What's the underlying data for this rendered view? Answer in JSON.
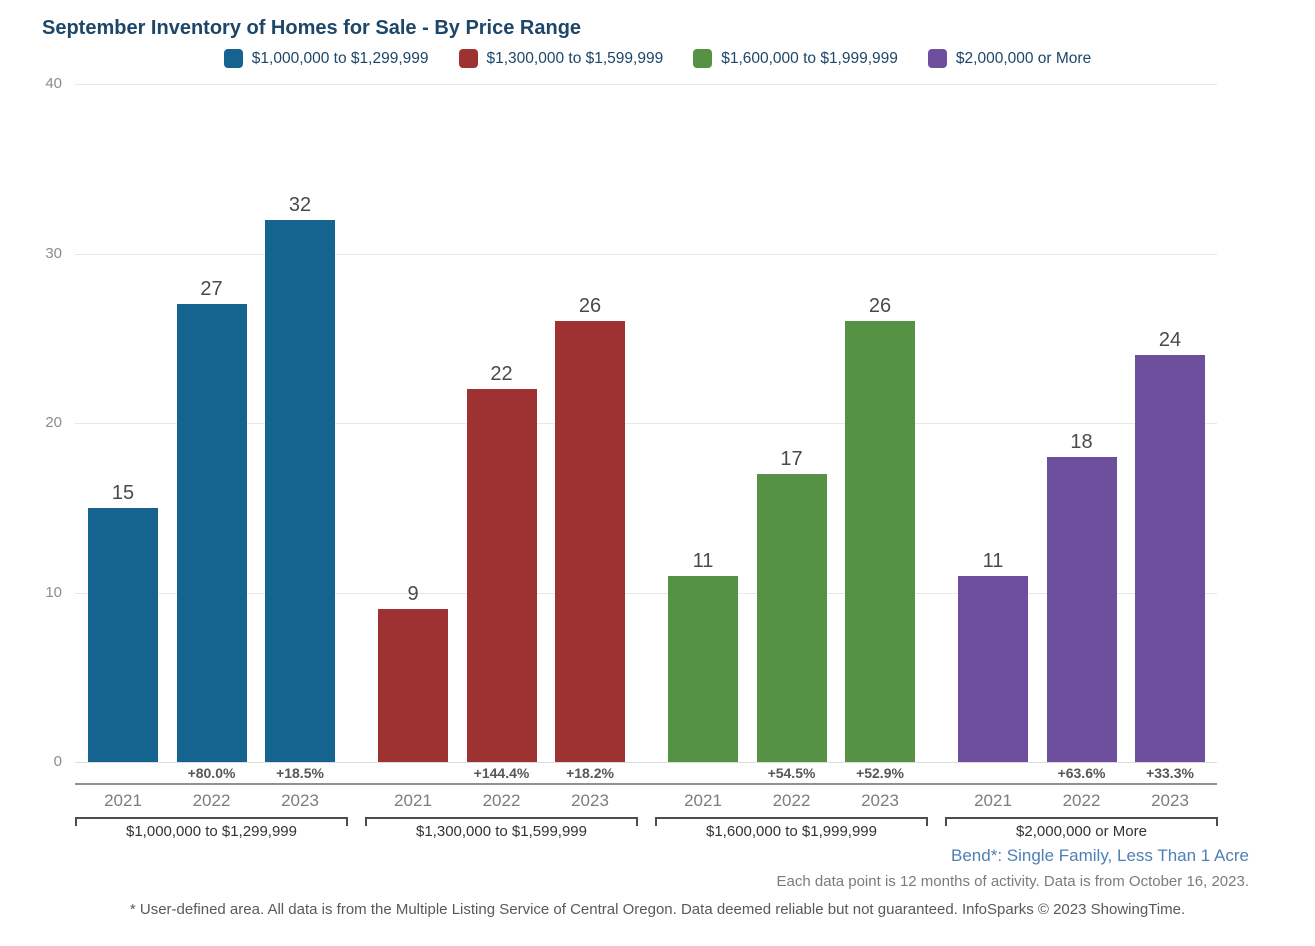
{
  "title": "September Inventory of Homes for Sale - By Price Range",
  "footnotes": {
    "location_line": "Bend*: Single Family, Less Than 1 Acre",
    "data_note": "Each data point is 12 months of activity. Data is from October 16, 2023.",
    "disclaimer": "* User-defined area. All data is from the Multiple Listing Service of Central Oregon. Data deemed reliable but not guaranteed. InfoSparks © 2023 ShowingTime."
  },
  "colors": {
    "title_text": "#1D4669",
    "legend_text": "#1D4669",
    "location_text": "#4E7FB5",
    "gridline": "#e8e8e8",
    "value_label": "#4a4a4a",
    "year_label": "#7d7d7d",
    "pct_label": "#575757"
  },
  "chart_data": {
    "type": "bar",
    "title": "September Inventory of Homes for Sale - By Price Range",
    "ylabel": "",
    "xlabel": "",
    "ylim": [
      0,
      40
    ],
    "yticks": [
      0,
      10,
      20,
      30,
      40
    ],
    "grid": true,
    "legend_position": "top-center",
    "categories": [
      "2021",
      "2022",
      "2023"
    ],
    "groups": [
      {
        "label": "$1,000,000 to $1,299,999",
        "color": "#15648F",
        "values": [
          15,
          27,
          32
        ],
        "pct_changes": [
          null,
          "+80.0%",
          "+18.5%"
        ]
      },
      {
        "label": "$1,300,000 to $1,599,999",
        "color": "#9E3132",
        "values": [
          9,
          22,
          26
        ],
        "pct_changes": [
          null,
          "+144.4%",
          "+18.2%"
        ]
      },
      {
        "label": "$1,600,000 to $1,999,999",
        "color": "#569243",
        "values": [
          11,
          17,
          26
        ],
        "pct_changes": [
          null,
          "+54.5%",
          "+52.9%"
        ]
      },
      {
        "label": "$2,000,000 or More",
        "color": "#6E4F9D",
        "values": [
          11,
          18,
          24
        ],
        "pct_changes": [
          null,
          "+63.6%",
          "+33.3%"
        ]
      }
    ]
  }
}
